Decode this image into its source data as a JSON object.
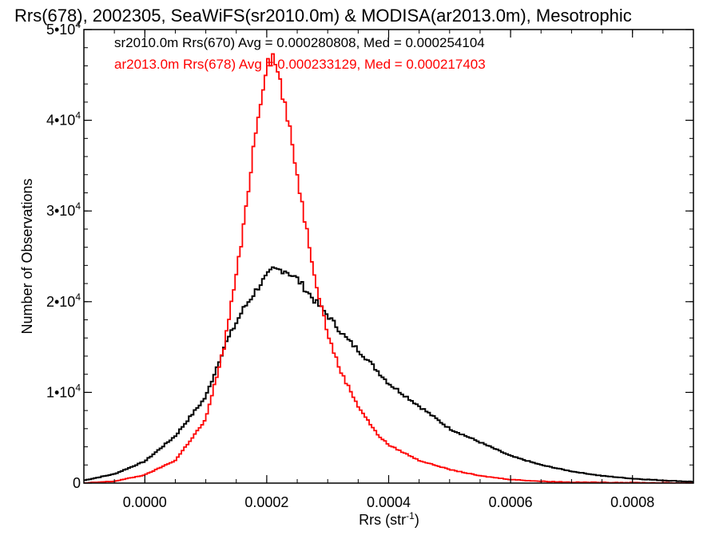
{
  "chart_data": {
    "type": "line",
    "style": "histogram-step",
    "title": "Rrs(678), 2002305, SeaWiFS(sr2010.0m) & MODISA(ar2013.0m), Mesotrophic",
    "xlabel": "Rrs (str",
    "xlabel_superscript": "-1",
    "xlabel_suffix": ")",
    "ylabel": "Number of Observations",
    "xlim": [
      -0.0001,
      0.0009
    ],
    "ylim": [
      0,
      50000
    ],
    "x_ticks": [
      {
        "value": 0.0,
        "label": "0.0000"
      },
      {
        "value": 0.0002,
        "label": "0.0002"
      },
      {
        "value": 0.0004,
        "label": "0.0004"
      },
      {
        "value": 0.0006,
        "label": "0.0006"
      },
      {
        "value": 0.0008,
        "label": "0.0008"
      }
    ],
    "y_ticks": [
      {
        "value": 0,
        "mantissa": "0",
        "exponent": ""
      },
      {
        "value": 10000,
        "mantissa": "1•10",
        "exponent": "4"
      },
      {
        "value": 20000,
        "mantissa": "2•10",
        "exponent": "4"
      },
      {
        "value": 30000,
        "mantissa": "3•10",
        "exponent": "4"
      },
      {
        "value": 40000,
        "mantissa": "4•10",
        "exponent": "4"
      },
      {
        "value": 50000,
        "mantissa": "5•10",
        "exponent": "4"
      }
    ],
    "legend_position": "top-left",
    "grid": false,
    "series": [
      {
        "name": "sr2010.0m Rrs(670) Avg = 0.000280808, Med = 0.000254104",
        "color": "#000000",
        "x": [
          -0.0001,
          -5e-05,
          0.0,
          5e-05,
          0.0001,
          0.00013,
          0.00016,
          0.00019,
          0.00021,
          0.00023,
          0.00025,
          0.00028,
          0.0003,
          0.00033,
          0.00036,
          0.0004,
          0.00045,
          0.0005,
          0.00055,
          0.0006,
          0.00065,
          0.0007,
          0.00075,
          0.0008,
          0.00085,
          0.0009
        ],
        "y": [
          300,
          1000,
          2400,
          5200,
          9500,
          15000,
          19000,
          22000,
          23500,
          23500,
          22500,
          20000,
          18500,
          16000,
          14000,
          11000,
          8500,
          6000,
          4500,
          3000,
          2000,
          1300,
          800,
          500,
          300,
          150
        ]
      },
      {
        "name": "ar2013.0m Rrs(678) Avg = 0.000233129, Med = 0.000217403",
        "color": "#ff0000",
        "x": [
          -0.0001,
          -5e-05,
          0.0,
          5e-05,
          0.0001,
          0.00013,
          0.00016,
          0.00018,
          0.0002,
          0.00021,
          0.00022,
          0.00024,
          0.00026,
          0.00028,
          0.0003,
          0.00032,
          0.00035,
          0.00038,
          0.0004,
          0.00045,
          0.0005,
          0.00055,
          0.0006,
          0.00065,
          0.0007,
          0.0009
        ],
        "y": [
          0,
          200,
          900,
          2500,
          7000,
          15000,
          27000,
          38000,
          46500,
          47000,
          45000,
          38000,
          30000,
          22500,
          16500,
          12500,
          8500,
          5500,
          4200,
          2500,
          1500,
          800,
          400,
          200,
          100,
          0
        ]
      }
    ]
  }
}
